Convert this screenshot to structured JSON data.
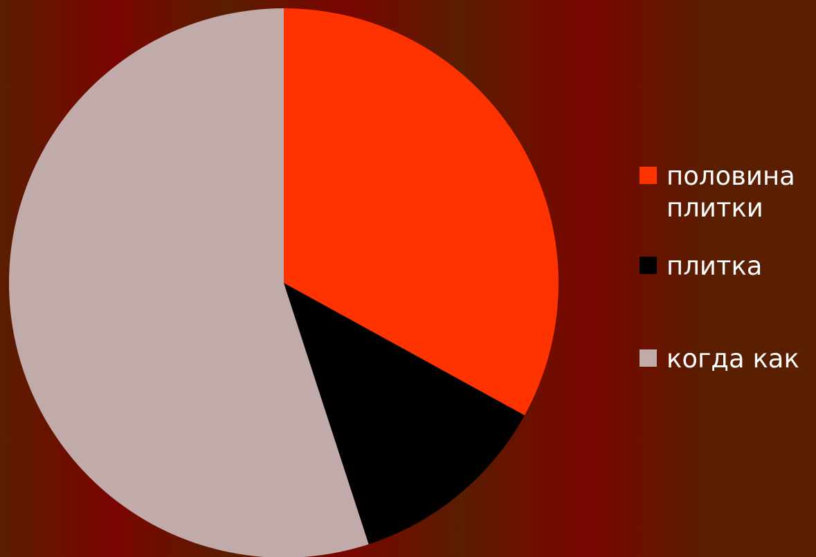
{
  "chart_data": {
    "type": "pie",
    "title": "",
    "legend": "right",
    "slices": [
      {
        "label": "половина плитки",
        "value": 33,
        "color": "#ff3300"
      },
      {
        "label": "плитка",
        "value": 12,
        "color": "#000000"
      },
      {
        "label": "когда как",
        "value": 55,
        "color": "#c0aaaa"
      }
    ]
  }
}
